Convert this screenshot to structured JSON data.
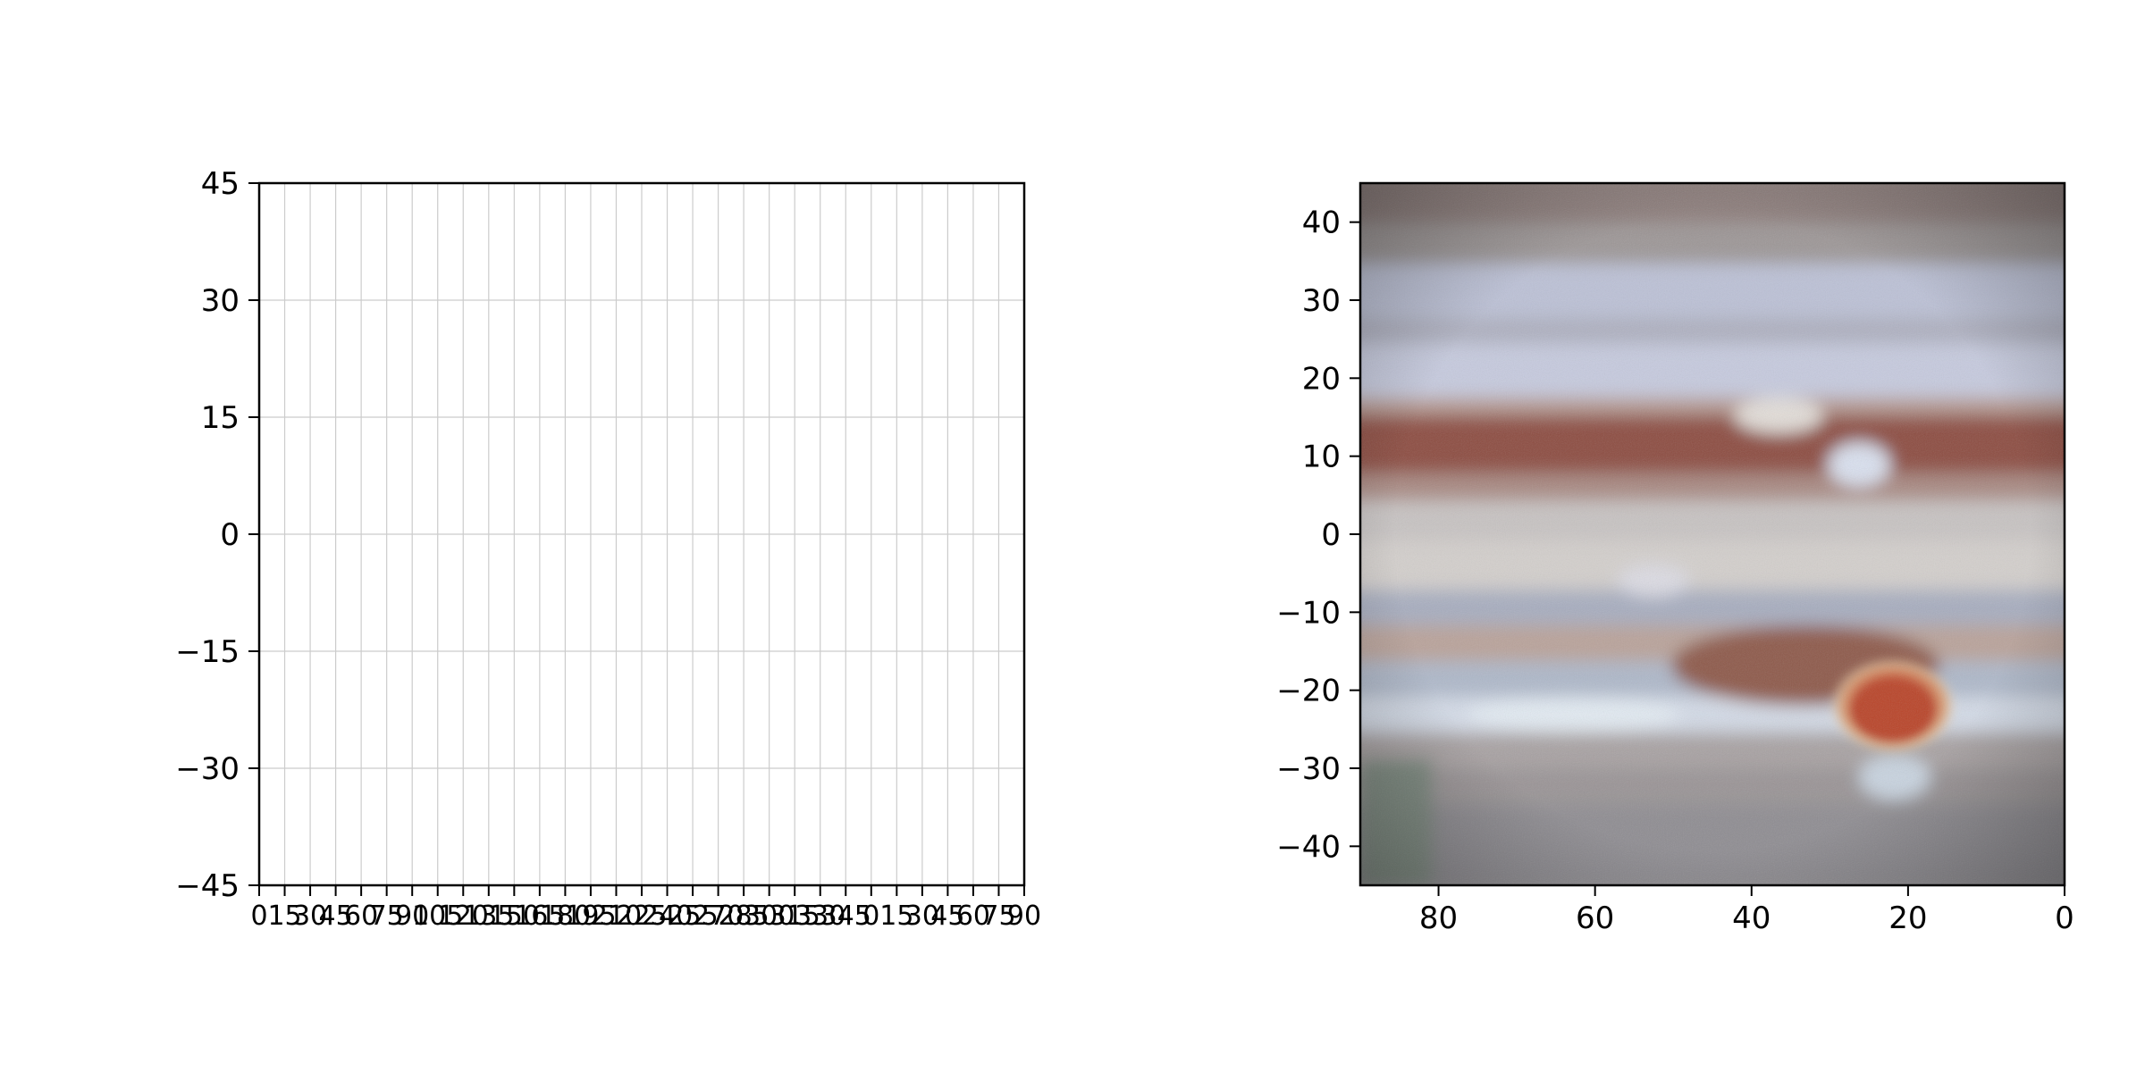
{
  "chart_data": [
    {
      "type": "scatter",
      "title": "",
      "xlabel": "",
      "ylabel": "",
      "xlim": [
        0,
        90
      ],
      "ylim": [
        -45,
        45
      ],
      "grid": true,
      "series": [],
      "y_ticks": [
        "45",
        "30",
        "15",
        "0",
        "−15",
        "−30",
        "−45"
      ],
      "y_tick_values": [
        45,
        30,
        15,
        0,
        -15,
        -30,
        -45
      ],
      "x_tick_values": [
        0,
        3,
        6,
        9,
        12,
        15,
        18,
        21,
        24,
        27,
        30,
        33,
        36,
        39,
        42,
        45,
        48,
        51,
        54,
        57,
        60,
        63,
        66,
        69,
        72,
        75,
        78,
        81,
        84,
        87,
        90
      ],
      "x_ticks": [
        "0",
        "15",
        "30",
        "45",
        "60",
        "75",
        "90",
        "105",
        "120",
        "135",
        "150",
        "165",
        "180",
        "195",
        "210",
        "225",
        "240",
        "255",
        "270",
        "285",
        "300",
        "315",
        "330",
        "345",
        "0",
        "15",
        "30",
        "45",
        "60",
        "75",
        "90"
      ]
    },
    {
      "type": "heatmap",
      "title": "",
      "xlabel": "",
      "ylabel": "",
      "xlim": [
        90,
        0
      ],
      "ylim": [
        -45,
        45
      ],
      "grid": false,
      "image": "Jupiter cloud bands with Great Red Spot",
      "colors": {
        "band_brown": "#8a4a3c",
        "band_light": "#c9ccd6",
        "band_blue": "#a7b3cf",
        "spot": "#c4502f"
      },
      "x_ticks": [
        "80",
        "60",
        "40",
        "20",
        "0"
      ],
      "x_tick_values": [
        80,
        60,
        40,
        20,
        0
      ],
      "y_ticks": [
        "40",
        "30",
        "20",
        "10",
        "0",
        "−10",
        "−20",
        "−30",
        "−40"
      ],
      "y_tick_values": [
        40,
        30,
        20,
        10,
        0,
        -10,
        -20,
        -30,
        -40
      ]
    }
  ]
}
